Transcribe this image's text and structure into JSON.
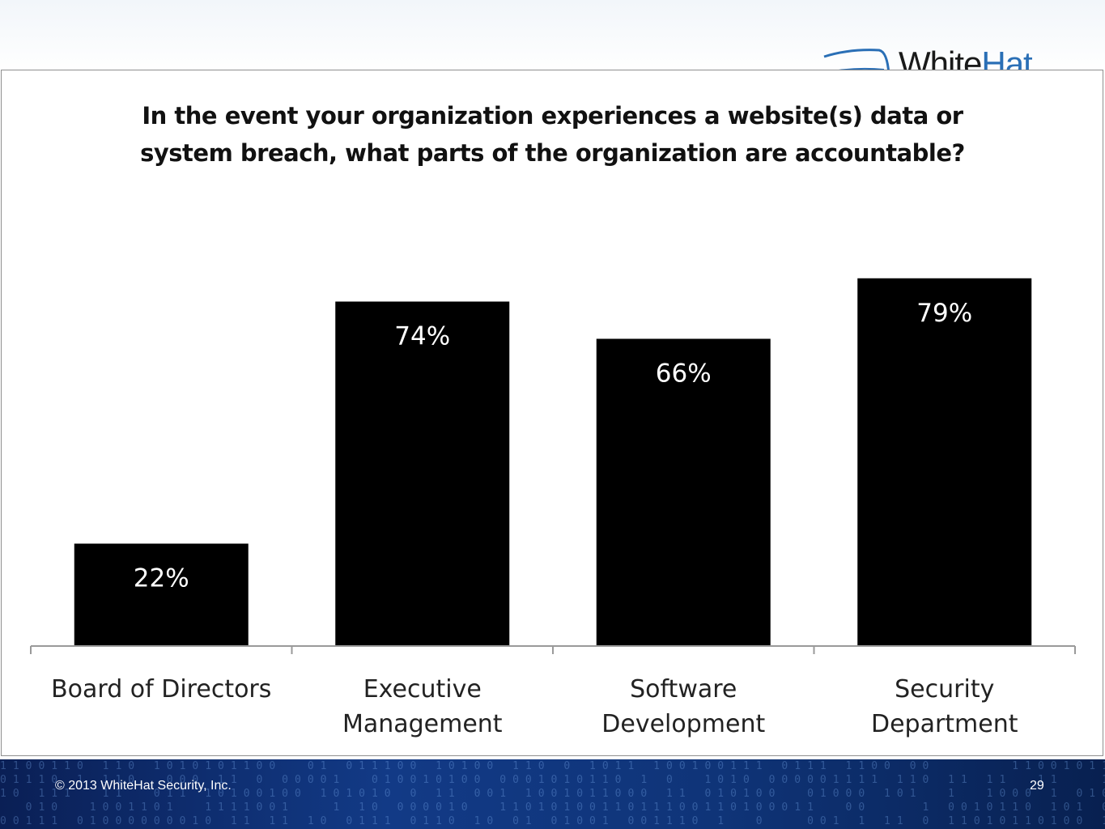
{
  "slide": {
    "logo_text_main": "White",
    "logo_text_accent": "Hat",
    "copyright": "© 2013 WhiteHat Security, Inc.",
    "page_number": "29",
    "colors": {
      "bar": "#000000",
      "footer_bg": "#0f3478",
      "logo_accent": "#2a6fb6"
    }
  },
  "chart_data": {
    "type": "bar",
    "title": "In the event your organization experiences a website(s) data or system breach, what parts of the organization are accountable?",
    "title_lines": [
      "In the event your organization experiences a website(s) data or",
      "system breach, what parts of the organization are accountable?"
    ],
    "categories": [
      "Board of Directors",
      "Executive Management",
      "Software Development",
      "Security Department"
    ],
    "category_lines": [
      [
        "Board of Directors"
      ],
      [
        "Executive",
        "Management"
      ],
      [
        "Software",
        "Development"
      ],
      [
        "Security",
        "Department"
      ]
    ],
    "values": [
      22,
      74,
      66,
      79
    ],
    "data_labels": [
      "22%",
      "74%",
      "66%",
      "79%"
    ],
    "ylim": [
      0,
      100
    ],
    "grid": false,
    "legend": "none"
  }
}
